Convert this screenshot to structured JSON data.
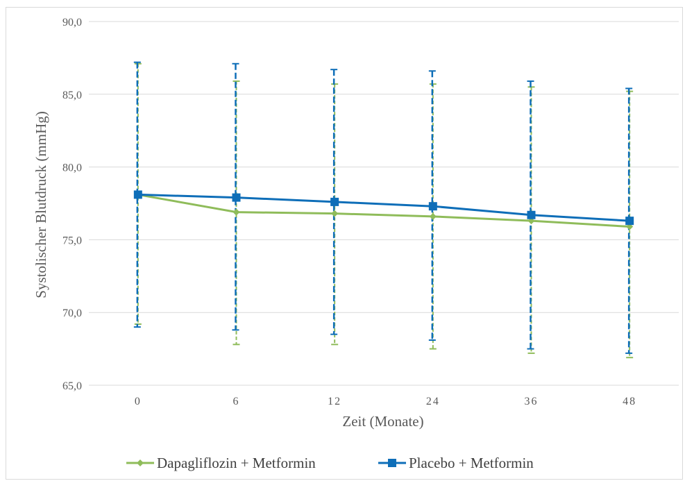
{
  "chart_data": {
    "type": "line",
    "title": "",
    "xlabel": "Zeit (Monate)",
    "ylabel": "Systolischer Blutdruck (mmHg)",
    "categories": [
      "0",
      "6",
      "12",
      "24",
      "36",
      "48"
    ],
    "ylim": [
      65.0,
      90.0
    ],
    "yticks": [
      "65,0",
      "70,0",
      "75,0",
      "80,0",
      "85,0",
      "90,0"
    ],
    "ytick_values": [
      65,
      70,
      75,
      80,
      85,
      90
    ],
    "grid": "horizontal",
    "legend": "bottom",
    "series": [
      {
        "name": "Dapagliflozin + Metformin",
        "color": "#8fbc5a",
        "marker": "diamond",
        "values": [
          78.1,
          76.9,
          76.8,
          76.6,
          76.3,
          75.9
        ],
        "error_low": [
          69.2,
          67.8,
          67.8,
          67.5,
          67.2,
          66.9
        ],
        "error_high": [
          87.1,
          85.9,
          85.7,
          85.7,
          85.5,
          85.2
        ]
      },
      {
        "name": "Placebo + Metformin",
        "color": "#0e6eb8",
        "marker": "square",
        "values": [
          78.1,
          77.9,
          77.6,
          77.3,
          76.7,
          76.3
        ],
        "error_low": [
          69.0,
          68.8,
          68.5,
          68.1,
          67.5,
          67.2
        ],
        "error_high": [
          87.2,
          87.1,
          86.7,
          86.6,
          85.9,
          85.4
        ]
      }
    ]
  }
}
